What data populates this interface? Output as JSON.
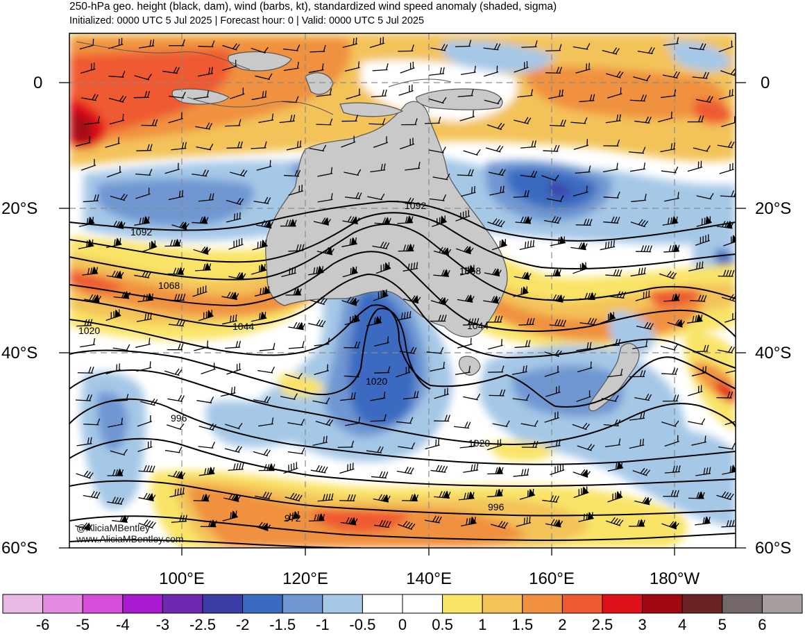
{
  "header": {
    "title": "250-hPa geo. height (black, dam), wind (barbs, kt), standardized wind speed anomaly (shaded, sigma)",
    "subtitle": "Initialized: 0000 UTC 5 Jul 2025 | Forecast hour: 0 | Valid: 0000 UTC 5 Jul 2025"
  },
  "map": {
    "lat_labels": [
      "0",
      "20°S",
      "40°S",
      "60°S"
    ],
    "lon_labels": [
      "100°E",
      "120°E",
      "140°E",
      "160°E",
      "180°W"
    ],
    "contour_labels": [
      "1092",
      "1092",
      "1068",
      "1068",
      "1044",
      "1044",
      "1020",
      "1020",
      "1020",
      "996",
      "996",
      "972"
    ],
    "watermark": [
      "@AliciaMBentley",
      "www.AliciaMBentley.com"
    ]
  },
  "colorbar": {
    "labels": [
      "-6",
      "-5",
      "-4",
      "-3",
      "-2.5",
      "-2",
      "-1.5",
      "-1",
      "-0.5",
      "0",
      "0.5",
      "1",
      "1.5",
      "2",
      "2.5",
      "3",
      "4",
      "5",
      "6"
    ],
    "colors": [
      "#e9b9e6",
      "#e38ce2",
      "#d64fdb",
      "#a81ad0",
      "#6f28b2",
      "#3c3ca6",
      "#3a6bc0",
      "#7097d2",
      "#a5c8e7",
      "#ffffff",
      "#ffffff",
      "#f9e467",
      "#f3c35a",
      "#f09140",
      "#ef5a31",
      "#e0101a",
      "#a10912",
      "#6b2325",
      "#736767",
      "#a89d9d"
    ]
  }
}
